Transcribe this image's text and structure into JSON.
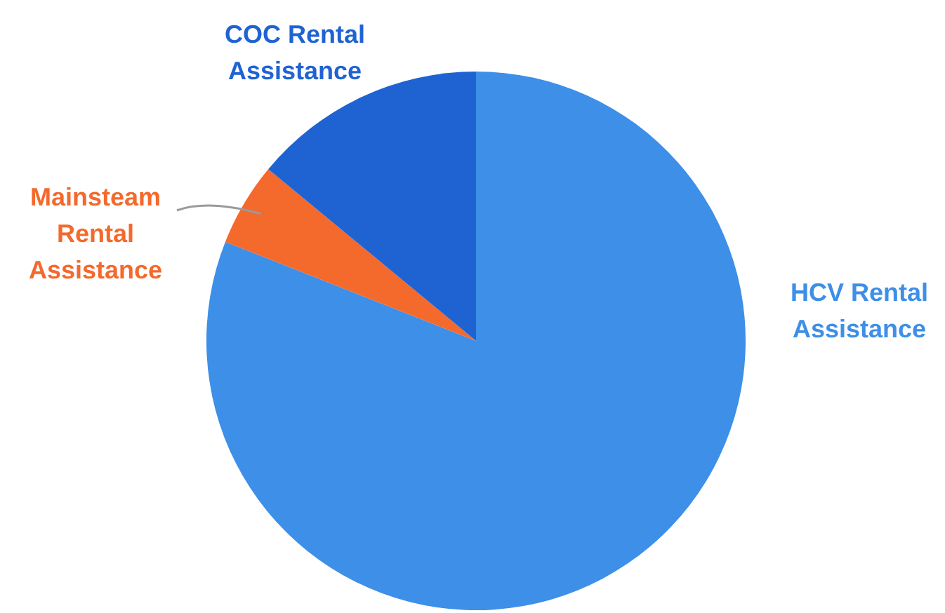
{
  "chart_data": {
    "type": "pie",
    "categories": [
      "HCV Rental Assistance",
      "Mainsteam Rental Assistance",
      "COC Rental Assistance"
    ],
    "values": [
      81,
      5,
      14
    ],
    "colors": [
      "#3d8fe8",
      "#f4692c",
      "#1f63d3"
    ]
  }
}
